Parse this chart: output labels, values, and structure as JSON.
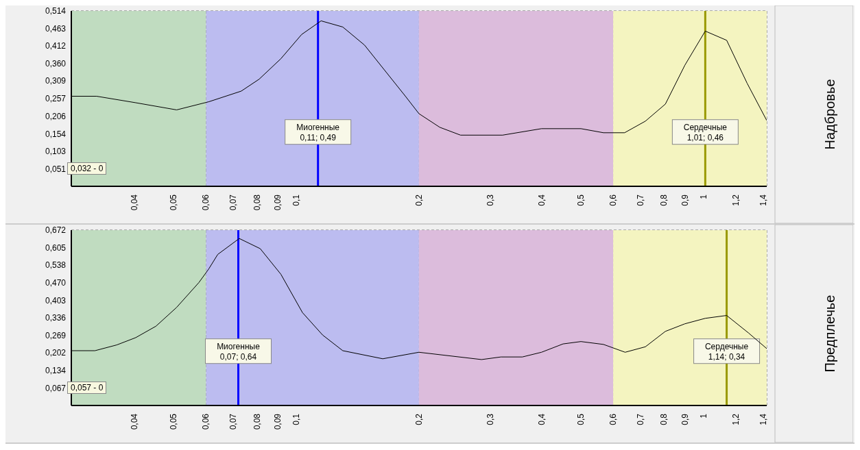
{
  "chart_data": [
    {
      "type": "line",
      "y2label": "Надбровье",
      "log": "x",
      "grid": true,
      "marker": "none",
      "x": [
        0.028,
        0.0323,
        0.0403,
        0.0508,
        0.061,
        0.0732,
        0.081,
        0.0916,
        0.103,
        0.115,
        0.13,
        0.147,
        0.185,
        0.2,
        0.225,
        0.253,
        0.321,
        0.4,
        0.5,
        0.568,
        0.64,
        0.72,
        0.806,
        0.9,
        1.01,
        1.14,
        1.28,
        1.43
      ],
      "series": [
        {
          "color": "#000000",
          "values": [
            0.264,
            0.264,
            0.245,
            0.224,
            0.248,
            0.279,
            0.314,
            0.374,
            0.445,
            0.485,
            0.467,
            0.414,
            0.265,
            0.213,
            0.173,
            0.15,
            0.15,
            0.169,
            0.169,
            0.157,
            0.157,
            0.191,
            0.241,
            0.355,
            0.455,
            0.428,
            0.302,
            0.193
          ]
        }
      ],
      "xlim": [
        0.028,
        1.43
      ],
      "xticks": [
        {
          "value": 0.04,
          "label": "0,04"
        },
        {
          "value": 0.05,
          "label": "0,05"
        },
        {
          "value": 0.06,
          "label": "0,06"
        },
        {
          "value": 0.07,
          "label": "0,07"
        },
        {
          "value": 0.08,
          "label": "0,08"
        },
        {
          "value": 0.09,
          "label": "0,09"
        },
        {
          "value": 0.1,
          "label": "0,1"
        },
        {
          "value": 0.2,
          "label": "0,2"
        },
        {
          "value": 0.3,
          "label": "0,3"
        },
        {
          "value": 0.4,
          "label": "0,4"
        },
        {
          "value": 0.5,
          "label": "0,5"
        },
        {
          "value": 0.6,
          "label": "0,6"
        },
        {
          "value": 0.7,
          "label": "0,7"
        },
        {
          "value": 0.8,
          "label": "0,8"
        },
        {
          "value": 0.9,
          "label": "0,9"
        },
        {
          "value": 1,
          "label": "1"
        },
        {
          "value": 1.2,
          "label": "1,2"
        },
        {
          "value": 1.4,
          "label": "1,4"
        }
      ],
      "ylim": [
        0,
        0.514
      ],
      "yticks": [
        {
          "value": 0.051,
          "label": "0,051"
        },
        {
          "value": 0.103,
          "label": "0,103"
        },
        {
          "value": 0.154,
          "label": "0,154"
        },
        {
          "value": 0.206,
          "label": "0,206"
        },
        {
          "value": 0.257,
          "label": "0,257"
        },
        {
          "value": 0.309,
          "label": "0,309"
        },
        {
          "value": 0.36,
          "label": "0,360"
        },
        {
          "value": 0.412,
          "label": "0,412"
        },
        {
          "value": 0.463,
          "label": "0,463"
        },
        {
          "value": 0.514,
          "label": "0,514"
        }
      ],
      "bands": [
        {
          "axis": "x",
          "from": 0.028,
          "to": 0.06,
          "color": "#c0dcc0"
        },
        {
          "axis": "x",
          "from": 0.06,
          "to": 0.2,
          "color": "#bcbcf0"
        },
        {
          "axis": "x",
          "from": 0.2,
          "to": 0.6,
          "color": "#dcbcdc"
        },
        {
          "axis": "x",
          "from": 0.6,
          "to": 1.43,
          "color": "#f4f4c0"
        }
      ],
      "ref_lines": [
        {
          "axis": "x",
          "value": 0.113,
          "label": "Миогенные\n0,11; 0,49",
          "color": "#0000ff"
        },
        {
          "axis": "x",
          "value": 1.01,
          "label": "Сердечные\n1,01; 0,46",
          "color": "#999900"
        }
      ],
      "annotations": [
        "0,032 - 0"
      ]
    },
    {
      "type": "line",
      "y2label": "Предплечье",
      "log": "x",
      "grid": true,
      "marker": "none",
      "x": [
        0.028,
        0.032,
        0.0362,
        0.0403,
        0.0452,
        0.0508,
        0.0576,
        0.0609,
        0.0641,
        0.0724,
        0.0815,
        0.0916,
        0.1035,
        0.116,
        0.13,
        0.163,
        0.2,
        0.285,
        0.318,
        0.359,
        0.4,
        0.452,
        0.5,
        0.568,
        0.642,
        0.72,
        0.806,
        0.9,
        1.01,
        1.14,
        1.29,
        1.43
      ],
      "series": [
        {
          "color": "#000000",
          "values": [
            0.21,
            0.21,
            0.232,
            0.26,
            0.304,
            0.376,
            0.471,
            0.523,
            0.579,
            0.64,
            0.601,
            0.503,
            0.356,
            0.27,
            0.21,
            0.179,
            0.204,
            0.176,
            0.186,
            0.186,
            0.204,
            0.236,
            0.245,
            0.234,
            0.204,
            0.225,
            0.284,
            0.313,
            0.334,
            0.345,
            0.278,
            0.218
          ]
        }
      ],
      "xlim": [
        0.028,
        1.43
      ],
      "xticks": [
        {
          "value": 0.04,
          "label": "0,04"
        },
        {
          "value": 0.05,
          "label": "0,05"
        },
        {
          "value": 0.06,
          "label": "0,06"
        },
        {
          "value": 0.07,
          "label": "0,07"
        },
        {
          "value": 0.08,
          "label": "0,08"
        },
        {
          "value": 0.09,
          "label": "0,09"
        },
        {
          "value": 0.1,
          "label": "0,1"
        },
        {
          "value": 0.2,
          "label": "0,2"
        },
        {
          "value": 0.3,
          "label": "0,3"
        },
        {
          "value": 0.4,
          "label": "0,4"
        },
        {
          "value": 0.5,
          "label": "0,5"
        },
        {
          "value": 0.6,
          "label": "0,6"
        },
        {
          "value": 0.7,
          "label": "0,7"
        },
        {
          "value": 0.8,
          "label": "0,8"
        },
        {
          "value": 0.9,
          "label": "0,9"
        },
        {
          "value": 1,
          "label": "1"
        },
        {
          "value": 1.2,
          "label": "1,2"
        },
        {
          "value": 1.4,
          "label": "1,4"
        }
      ],
      "ylim": [
        0,
        0.672
      ],
      "yticks": [
        {
          "value": 0.067,
          "label": "0,067"
        },
        {
          "value": 0.134,
          "label": "0,134"
        },
        {
          "value": 0.202,
          "label": "0,202"
        },
        {
          "value": 0.269,
          "label": "0,269"
        },
        {
          "value": 0.336,
          "label": "0,336"
        },
        {
          "value": 0.403,
          "label": "0,403"
        },
        {
          "value": 0.47,
          "label": "0,470"
        },
        {
          "value": 0.538,
          "label": "0,538"
        },
        {
          "value": 0.605,
          "label": "0,605"
        },
        {
          "value": 0.672,
          "label": "0,672"
        }
      ],
      "bands": [
        {
          "axis": "x",
          "from": 0.028,
          "to": 0.06,
          "color": "#c0dcc0"
        },
        {
          "axis": "x",
          "from": 0.06,
          "to": 0.2,
          "color": "#bcbcf0"
        },
        {
          "axis": "x",
          "from": 0.2,
          "to": 0.6,
          "color": "#dcbcdc"
        },
        {
          "axis": "x",
          "from": 0.6,
          "to": 1.43,
          "color": "#f4f4c0"
        }
      ],
      "ref_lines": [
        {
          "axis": "x",
          "value": 0.072,
          "label": "Миогенные\n0,07; 0,64",
          "color": "#0000ff"
        },
        {
          "axis": "x",
          "value": 1.14,
          "label": "Сердечные\n1,14; 0,34",
          "color": "#999900"
        }
      ],
      "annotations": [
        "0,057 - 0"
      ]
    }
  ]
}
